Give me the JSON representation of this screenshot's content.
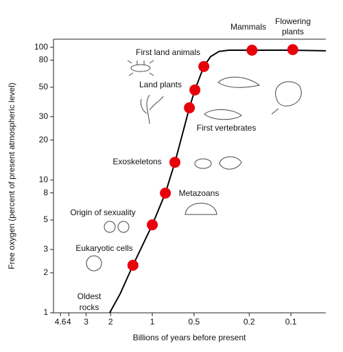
{
  "chart_data": {
    "type": "scatter",
    "xlabel": "Billions of years before present",
    "ylabel": "Free oxygen (percent of present atmospheric level)",
    "xscale": "log",
    "yscale": "log",
    "x_reversed": true,
    "xlim": [
      5.16,
      0.056
    ],
    "ylim": [
      1,
      115
    ],
    "xticks": [
      4.6,
      4,
      3,
      2,
      1,
      0.5,
      0.2,
      0.1
    ],
    "yticks": [
      1,
      2,
      3,
      5,
      8,
      10,
      20,
      30,
      50,
      80,
      100
    ],
    "curve": {
      "color": "#000000",
      "x": [
        2.03,
        1.7,
        1.38,
        1.0,
        0.805,
        0.687,
        0.54,
        0.493,
        0.425,
        0.38,
        0.33,
        0.28,
        0.2,
        0.1,
        0.056
      ],
      "y": [
        1,
        1.4,
        2.28,
        4.6,
        7.97,
        13.6,
        35,
        47.7,
        71.6,
        85,
        93,
        95,
        95,
        95,
        94
      ]
    },
    "points": {
      "color": "#e8000b",
      "x": [
        1.38,
        1.0,
        0.805,
        0.687,
        0.54,
        0.493,
        0.425,
        0.191,
        0.097
      ],
      "y": [
        2.28,
        4.6,
        7.97,
        13.6,
        35,
        47.7,
        71.6,
        95,
        96
      ],
      "labels": [
        [
          "Eukaryotic cells"
        ],
        [
          "Origin of sexuality"
        ],
        [
          "Metazoans"
        ],
        [
          "Exoskeletons"
        ],
        [
          "First vertebrates"
        ],
        [
          "Land plants"
        ],
        [
          "First land animals"
        ],
        [
          "Mammals"
        ],
        [
          "Flowering",
          "plants"
        ]
      ]
    },
    "annotations": [
      [
        "Oldest",
        "rocks"
      ]
    ]
  }
}
